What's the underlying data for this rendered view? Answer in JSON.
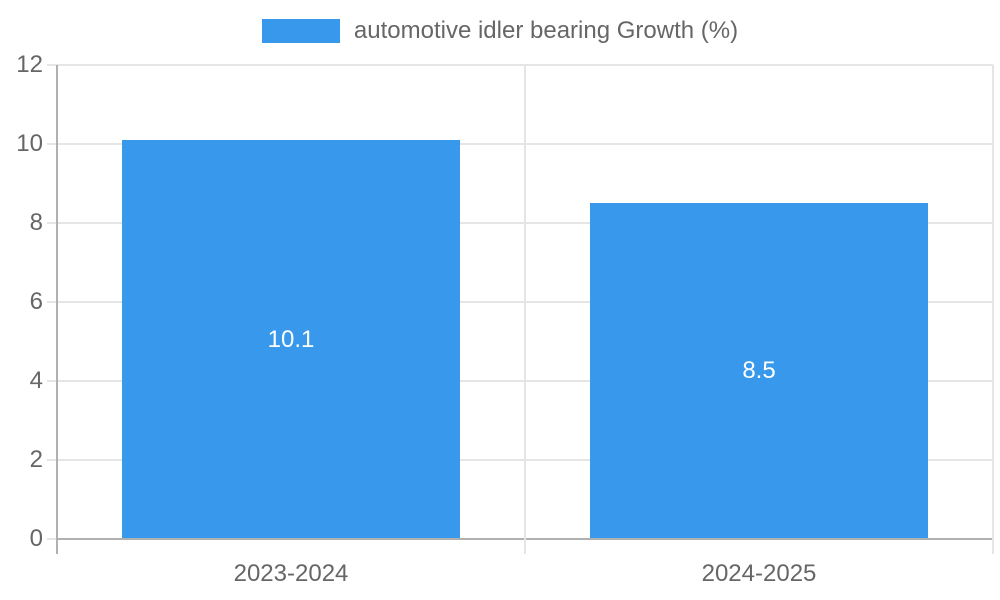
{
  "chart_data": {
    "type": "bar",
    "legend_label": "automotive idler bearing Growth (%)",
    "legend_position": "top",
    "categories": [
      "2023-2024",
      "2024-2025"
    ],
    "values": [
      10.1,
      8.5
    ],
    "value_labels": [
      "10.1",
      "8.5"
    ],
    "ylim": [
      0,
      12
    ],
    "yticks": [
      0,
      2,
      4,
      6,
      8,
      10,
      12
    ],
    "grid": true,
    "colors": {
      "bar": "#3899ec",
      "value_label_text": "#ffffff",
      "axis_text": "#666666",
      "gridline": "#e5e5e5",
      "axis_line": "#b0b0b0"
    }
  }
}
